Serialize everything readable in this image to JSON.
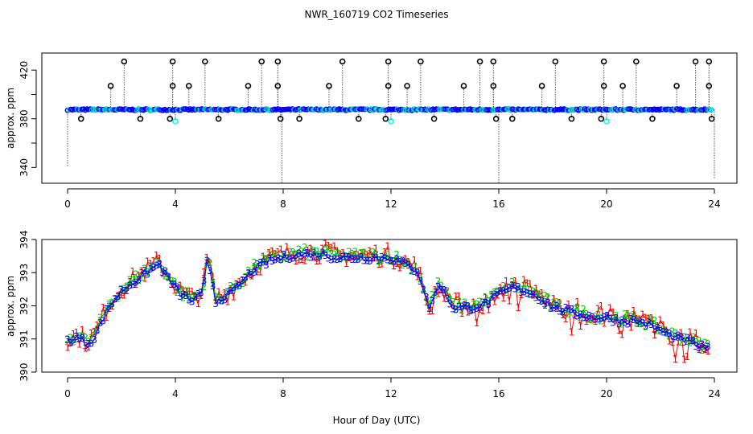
{
  "chart_data": [
    {
      "type": "scatter",
      "title": "NWR_160719  CO2 Timeseries",
      "xlabel": "",
      "ylabel": "approx. ppm",
      "xlim": [
        -1.0,
        24.5
      ],
      "ylim": [
        327,
        434
      ],
      "xticks": [
        0,
        4,
        8,
        12,
        16,
        20,
        24
      ],
      "yticks": [
        340,
        360,
        380,
        400,
        420
      ],
      "ytick_labels": [
        "340",
        "",
        "380",
        "",
        "420"
      ],
      "baseline": 387.5,
      "series": [
        {
          "name": "main",
          "color": "#0000ff",
          "points": "dense band at ~387 ppm from 0 to 24 h"
        },
        {
          "name": "spikes_high",
          "color": "#000000",
          "x": [
            2.1,
            3.9,
            5.1,
            7.2,
            7.8,
            10.2,
            11.9,
            13.1,
            15.3,
            15.8,
            18.1,
            19.9,
            21.1,
            23.3,
            23.8
          ],
          "values": [
            427,
            427,
            427,
            427,
            427,
            427,
            427,
            427,
            427,
            427,
            427,
            427,
            427,
            427,
            427
          ]
        },
        {
          "name": "spikes_mid",
          "color": "#000000",
          "x": [
            1.6,
            3.9,
            4.5,
            6.7,
            7.8,
            9.7,
            11.9,
            12.6,
            14.7,
            15.8,
            17.6,
            19.9,
            20.6,
            22.6,
            23.8
          ],
          "values": [
            407,
            407,
            407,
            407,
            407,
            407,
            407,
            407,
            407,
            407,
            407,
            407,
            407,
            407,
            407
          ]
        },
        {
          "name": "spikes_low",
          "color": "#000000",
          "x": [
            0.5,
            2.7,
            3.8,
            5.6,
            7.9,
            8.6,
            10.8,
            11.8,
            13.6,
            15.9,
            16.5,
            18.7,
            19.8,
            21.7,
            23.9
          ],
          "values": [
            380,
            380,
            380,
            380,
            380,
            380,
            380,
            380,
            380,
            380,
            380,
            380,
            380,
            380,
            380
          ]
        },
        {
          "name": "cyan_low",
          "color": "#00ffff",
          "x": [
            4.0,
            12.0,
            20.0
          ],
          "values": [
            378,
            378,
            378
          ]
        },
        {
          "name": "dips",
          "color": "#000000",
          "x": [
            0.0,
            7.95,
            16.0,
            24.0
          ],
          "values": [
            341,
            327,
            327,
            331
          ]
        }
      ]
    },
    {
      "type": "line",
      "title": "",
      "xlabel": "Hour of Day (UTC)",
      "ylabel": "approx. ppm",
      "xlim": [
        -1.0,
        24.5
      ],
      "ylim": [
        390,
        394
      ],
      "xticks": [
        0,
        4,
        8,
        12,
        16,
        20,
        24
      ],
      "yticks": [
        390,
        391,
        392,
        393,
        394
      ],
      "anchors": {
        "x": [
          0.0,
          0.4,
          0.7,
          1.0,
          1.5,
          2.0,
          2.5,
          3.0,
          3.4,
          3.8,
          4.2,
          4.6,
          5.0,
          5.2,
          5.5,
          6.0,
          6.5,
          7.0,
          7.5,
          8.0,
          8.5,
          9.0,
          9.5,
          10.0,
          10.5,
          11.0,
          11.5,
          12.0,
          12.5,
          13.0,
          13.4,
          13.8,
          14.3,
          15.0,
          15.5,
          16.0,
          16.5,
          17.0,
          17.5,
          18.0,
          18.5,
          19.0,
          19.5,
          20.0,
          20.5,
          21.0,
          21.5,
          22.0,
          22.5,
          23.0,
          23.5,
          23.8
        ],
        "y": [
          391.0,
          391.1,
          390.9,
          391.1,
          392.0,
          392.5,
          392.8,
          393.1,
          393.3,
          392.8,
          392.4,
          392.2,
          392.4,
          393.5,
          392.2,
          392.4,
          392.8,
          393.2,
          393.4,
          393.5,
          393.6,
          393.6,
          393.6,
          393.5,
          393.5,
          393.5,
          393.5,
          393.5,
          393.3,
          393.1,
          392.0,
          392.7,
          392.0,
          392.0,
          392.1,
          392.4,
          392.6,
          392.5,
          392.3,
          392.0,
          391.9,
          391.8,
          391.7,
          391.7,
          391.6,
          391.6,
          391.5,
          391.3,
          391.1,
          391.0,
          390.8,
          390.8
        ]
      },
      "series": [
        {
          "name": "1",
          "color": "#ff0000",
          "marker": "1"
        },
        {
          "name": "2",
          "color": "#00cc00",
          "marker": "2"
        },
        {
          "name": "3",
          "color": "#0000ff",
          "marker": "3"
        }
      ]
    }
  ]
}
